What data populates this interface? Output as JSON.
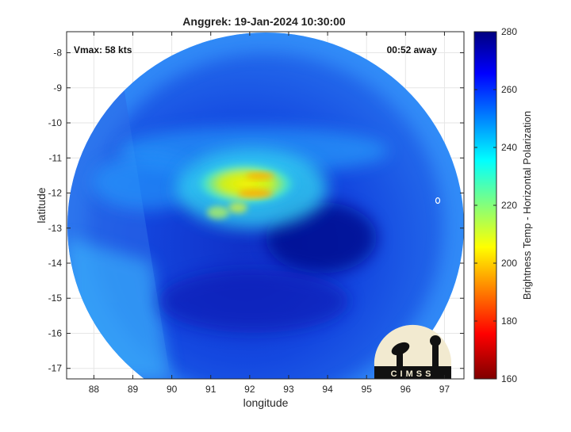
{
  "chart_data": {
    "type": "heatmap",
    "title": "Anggrek: 19-Jan-2024 10:30:00",
    "xlabel": "longitude",
    "ylabel": "latitude",
    "xlim": [
      87.3,
      97.5
    ],
    "ylim": [
      -17.3,
      -7.4
    ],
    "x_ticks": [
      88,
      89,
      90,
      91,
      92,
      93,
      94,
      95,
      96,
      97
    ],
    "y_ticks": [
      -8,
      -9,
      -10,
      -11,
      -12,
      -13,
      -14,
      -15,
      -16,
      -17
    ],
    "grid": true,
    "annotations": {
      "vmax": "Vmax: 58 kts",
      "time_away": "00:52 away"
    },
    "colorbar": {
      "label": "Brightness Temp - Horizontal Polarization",
      "range": [
        160,
        280
      ],
      "ticks": [
        280,
        260,
        240,
        220,
        200,
        180,
        160
      ],
      "colors": [
        "#00007f",
        "#0000ff",
        "#00ffff",
        "#ffff00",
        "#ff0000",
        "#7f0000"
      ]
    },
    "swath": {
      "center": [
        92.3,
        -12.2
      ],
      "radius_lon": 5.0,
      "radius_lat": 4.95
    },
    "cold_core": {
      "center": [
        92.1,
        -11.8
      ],
      "min_value": 205
    }
  },
  "logo": {
    "text": "CIMSS"
  }
}
